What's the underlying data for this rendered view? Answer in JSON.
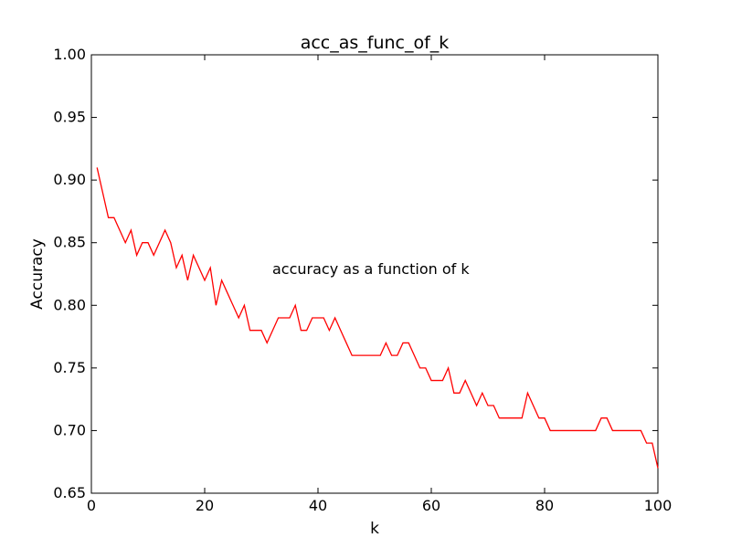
{
  "chart_data": {
    "type": "line",
    "title": "acc_as_func_of_k",
    "xlabel": "k",
    "ylabel": "Accuracy",
    "xlim": [
      0,
      100
    ],
    "ylim": [
      0.65,
      1.0
    ],
    "x_ticks": [
      0,
      20,
      40,
      60,
      80,
      100
    ],
    "y_ticks": [
      0.65,
      0.7,
      0.75,
      0.8,
      0.85,
      0.9,
      0.95,
      1.0
    ],
    "x_tick_labels": [
      "0",
      "20",
      "40",
      "60",
      "80",
      "100"
    ],
    "y_tick_labels": [
      "0.65",
      "0.70",
      "0.75",
      "0.80",
      "0.85",
      "0.90",
      "0.95",
      "1.00"
    ],
    "grid": false,
    "annotation": "accuracy as a function of k",
    "series": [
      {
        "color": "#ff0000",
        "x": [
          1,
          2,
          3,
          4,
          5,
          6,
          7,
          8,
          9,
          10,
          11,
          12,
          13,
          14,
          15,
          16,
          17,
          18,
          19,
          20,
          21,
          22,
          23,
          24,
          25,
          26,
          27,
          28,
          29,
          30,
          31,
          32,
          33,
          34,
          35,
          36,
          37,
          38,
          39,
          40,
          41,
          42,
          43,
          44,
          45,
          46,
          47,
          48,
          49,
          50,
          51,
          52,
          53,
          54,
          55,
          56,
          57,
          58,
          59,
          60,
          61,
          62,
          63,
          64,
          65,
          66,
          67,
          68,
          69,
          70,
          71,
          72,
          73,
          74,
          75,
          76,
          77,
          78,
          79,
          80,
          81,
          82,
          83,
          84,
          85,
          86,
          87,
          88,
          89,
          90,
          91,
          92,
          93,
          94,
          95,
          96,
          97,
          98,
          99,
          100
        ],
        "values": [
          0.91,
          0.89,
          0.87,
          0.87,
          0.86,
          0.85,
          0.86,
          0.84,
          0.85,
          0.85,
          0.84,
          0.85,
          0.86,
          0.85,
          0.83,
          0.84,
          0.82,
          0.84,
          0.83,
          0.82,
          0.83,
          0.8,
          0.82,
          0.81,
          0.8,
          0.79,
          0.8,
          0.78,
          0.78,
          0.78,
          0.77,
          0.78,
          0.79,
          0.79,
          0.79,
          0.8,
          0.78,
          0.78,
          0.79,
          0.79,
          0.79,
          0.78,
          0.79,
          0.78,
          0.77,
          0.76,
          0.76,
          0.76,
          0.76,
          0.76,
          0.76,
          0.77,
          0.76,
          0.76,
          0.77,
          0.77,
          0.76,
          0.75,
          0.75,
          0.74,
          0.74,
          0.74,
          0.75,
          0.73,
          0.73,
          0.74,
          0.73,
          0.72,
          0.73,
          0.72,
          0.72,
          0.71,
          0.71,
          0.71,
          0.71,
          0.71,
          0.73,
          0.72,
          0.71,
          0.71,
          0.7,
          0.7,
          0.7,
          0.7,
          0.7,
          0.7,
          0.7,
          0.7,
          0.7,
          0.71,
          0.71,
          0.7,
          0.7,
          0.7,
          0.7,
          0.7,
          0.7,
          0.69,
          0.69,
          0.67
        ]
      }
    ]
  }
}
